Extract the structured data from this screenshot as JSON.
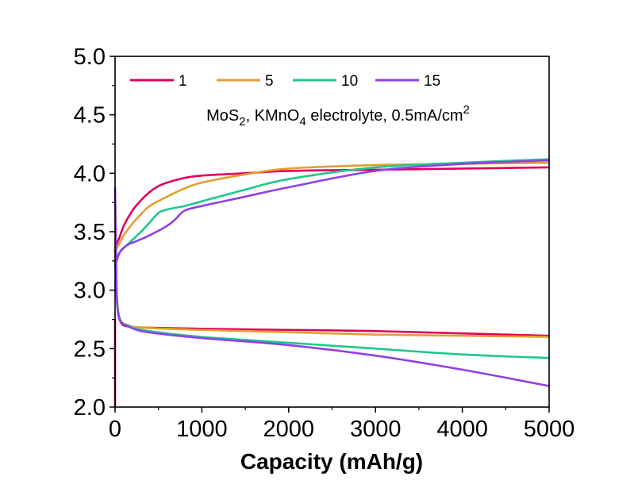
{
  "chart_data": {
    "type": "line",
    "title": "",
    "xlabel": "Capacity (mAh/g)",
    "ylabel": "",
    "xlim": [
      0,
      5000
    ],
    "ylim": [
      2.0,
      5.0
    ],
    "x_ticks": [
      "0",
      "1000",
      "2000",
      "3000",
      "4000",
      "5000"
    ],
    "y_ticks": [
      "2.0",
      "2.5",
      "3.0",
      "3.5",
      "4.0",
      "4.5",
      "5.0"
    ],
    "grid": false,
    "legend_position": "top",
    "annotation": {
      "parts": [
        "MoS",
        "2",
        ", KMnO",
        "4",
        " electrolyte, 0.5mA/cm",
        "2"
      ]
    },
    "series": [
      {
        "name": "1",
        "color": "#E0005E",
        "charge": [
          [
            0,
            3.36
          ],
          [
            50,
            3.45
          ],
          [
            100,
            3.55
          ],
          [
            200,
            3.68
          ],
          [
            300,
            3.77
          ],
          [
            400,
            3.84
          ],
          [
            500,
            3.89
          ],
          [
            600,
            3.92
          ],
          [
            800,
            3.96
          ],
          [
            1000,
            3.98
          ],
          [
            1500,
            4.0
          ],
          [
            2000,
            4.02
          ],
          [
            3000,
            4.03
          ],
          [
            4000,
            4.04
          ],
          [
            5000,
            4.05
          ]
        ],
        "discharge": [
          [
            0,
            3.35
          ],
          [
            20,
            2.95
          ],
          [
            40,
            2.78
          ],
          [
            80,
            2.71
          ],
          [
            150,
            2.69
          ],
          [
            300,
            2.68
          ],
          [
            1000,
            2.67
          ],
          [
            2000,
            2.66
          ],
          [
            3000,
            2.65
          ],
          [
            4000,
            2.63
          ],
          [
            5000,
            2.61
          ]
        ]
      },
      {
        "name": "5",
        "color": "#E0A030",
        "charge": [
          [
            0,
            3.33
          ],
          [
            50,
            3.4
          ],
          [
            100,
            3.47
          ],
          [
            200,
            3.57
          ],
          [
            300,
            3.65
          ],
          [
            400,
            3.72
          ],
          [
            600,
            3.8
          ],
          [
            800,
            3.87
          ],
          [
            1000,
            3.92
          ],
          [
            1500,
            3.99
          ],
          [
            2000,
            4.04
          ],
          [
            3000,
            4.07
          ],
          [
            4000,
            4.08
          ],
          [
            5000,
            4.09
          ]
        ],
        "discharge": [
          [
            0,
            3.33
          ],
          [
            20,
            2.95
          ],
          [
            40,
            2.78
          ],
          [
            80,
            2.72
          ],
          [
            150,
            2.7
          ],
          [
            300,
            2.68
          ],
          [
            1000,
            2.66
          ],
          [
            2000,
            2.64
          ],
          [
            3000,
            2.62
          ],
          [
            4000,
            2.61
          ],
          [
            5000,
            2.6
          ]
        ]
      },
      {
        "name": "10",
        "color": "#1FC88A",
        "charge": [
          [
            0,
            3.25
          ],
          [
            50,
            3.32
          ],
          [
            100,
            3.36
          ],
          [
            200,
            3.43
          ],
          [
            300,
            3.5
          ],
          [
            400,
            3.58
          ],
          [
            500,
            3.66
          ],
          [
            600,
            3.69
          ],
          [
            800,
            3.72
          ],
          [
            1000,
            3.76
          ],
          [
            1500,
            3.86
          ],
          [
            2000,
            3.95
          ],
          [
            3000,
            4.05
          ],
          [
            4000,
            4.09
          ],
          [
            5000,
            4.12
          ]
        ],
        "discharge": [
          [
            0,
            3.25
          ],
          [
            20,
            2.95
          ],
          [
            40,
            2.8
          ],
          [
            80,
            2.72
          ],
          [
            150,
            2.7
          ],
          [
            300,
            2.66
          ],
          [
            1000,
            2.6
          ],
          [
            2000,
            2.55
          ],
          [
            3000,
            2.5
          ],
          [
            4000,
            2.45
          ],
          [
            5000,
            2.42
          ]
        ]
      },
      {
        "name": "15",
        "color": "#9040E8",
        "charge": [
          [
            0,
            3.2
          ],
          [
            40,
            3.3
          ],
          [
            80,
            3.35
          ],
          [
            150,
            3.39
          ],
          [
            250,
            3.42
          ],
          [
            400,
            3.47
          ],
          [
            600,
            3.55
          ],
          [
            700,
            3.61
          ],
          [
            800,
            3.68
          ],
          [
            1000,
            3.72
          ],
          [
            1500,
            3.8
          ],
          [
            2000,
            3.88
          ],
          [
            3000,
            4.02
          ],
          [
            4000,
            4.08
          ],
          [
            5000,
            4.11
          ]
        ],
        "discharge": [
          [
            0,
            3.88
          ],
          [
            10,
            3.4
          ],
          [
            20,
            2.95
          ],
          [
            40,
            2.78
          ],
          [
            80,
            2.72
          ],
          [
            150,
            2.69
          ],
          [
            300,
            2.65
          ],
          [
            600,
            2.62
          ],
          [
            1000,
            2.59
          ],
          [
            2000,
            2.53
          ],
          [
            3000,
            2.44
          ],
          [
            4000,
            2.32
          ],
          [
            5000,
            2.18
          ]
        ]
      }
    ]
  }
}
